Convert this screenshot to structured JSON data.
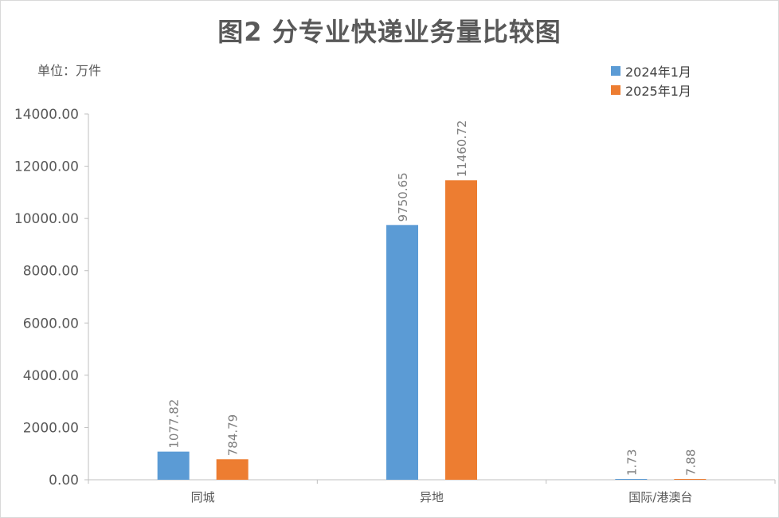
{
  "chart_data": {
    "type": "bar",
    "title": "图2 分专业快递业务量比较图",
    "unit_label": "单位：万件",
    "categories": [
      "同城",
      "异地",
      "国际/港澳台"
    ],
    "series": [
      {
        "name": "2024年1月",
        "color": "#5b9bd5",
        "values": [
          1077.82,
          9750.65,
          1.73
        ],
        "labels": [
          "1077.82",
          "9750.65",
          "1.73"
        ]
      },
      {
        "name": "2025年1月",
        "color": "#ed7d31",
        "values": [
          784.79,
          11460.72,
          7.88
        ],
        "labels": [
          "784.79",
          "11460.72",
          "7.88"
        ]
      }
    ],
    "ylim": [
      0,
      14000
    ],
    "yticks": [
      "0.00",
      "2000.00",
      "4000.00",
      "6000.00",
      "8000.00",
      "10000.00",
      "12000.00",
      "14000.00"
    ],
    "legend_position": "top-right",
    "grid": false
  }
}
